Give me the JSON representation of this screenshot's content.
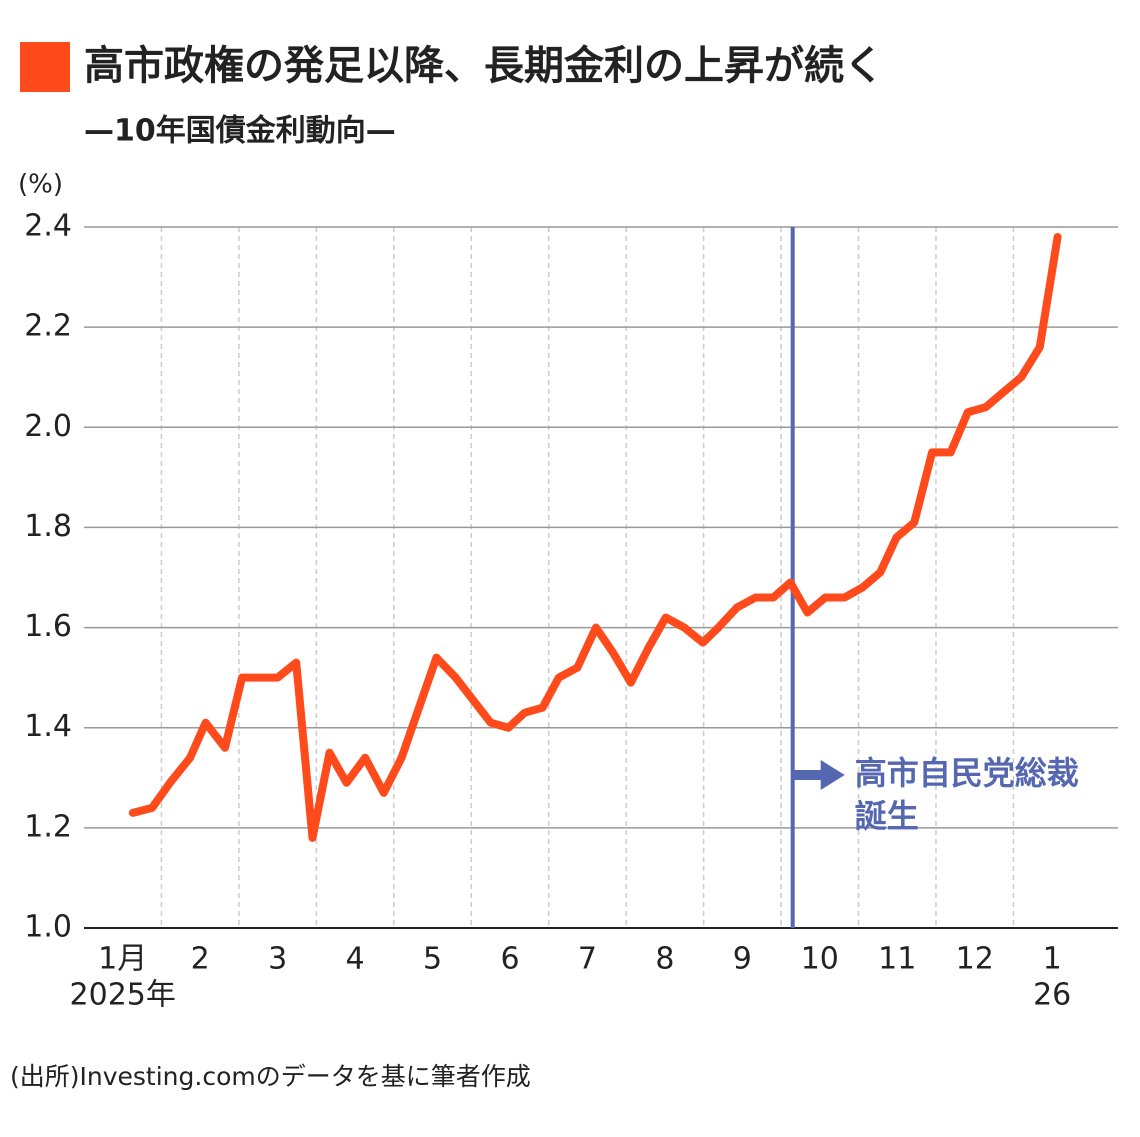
{
  "chart_data": {
    "type": "line",
    "title": "高市政権の発足以降、長期金利の上昇が続く",
    "subtitle": "—10年国債金利動向—",
    "y_unit": "(%)",
    "source": "(出所)Investing.comのデータを基に筆者作成",
    "color": "#ff4a1c",
    "x": [
      0.63,
      0.88,
      1.11,
      1.37,
      1.57,
      1.82,
      2.04,
      2.5,
      2.74,
      2.95,
      3.17,
      3.39,
      3.63,
      3.87,
      4.1,
      4.55,
      4.8,
      5.25,
      5.48,
      5.69,
      5.92,
      6.13,
      6.37,
      6.61,
      6.83,
      7.06,
      7.29,
      7.51,
      7.75,
      7.99,
      8.19,
      8.43,
      8.67,
      8.9,
      9.12,
      9.34,
      9.57,
      9.82,
      10.05,
      10.28,
      10.49,
      10.72,
      10.95,
      11.19,
      11.41,
      11.64,
      11.87,
      12.1,
      12.34,
      12.57
    ],
    "values": [
      1.23,
      1.24,
      1.29,
      1.34,
      1.41,
      1.36,
      1.5,
      1.5,
      1.53,
      1.18,
      1.35,
      1.29,
      1.34,
      1.27,
      1.34,
      1.54,
      1.5,
      1.41,
      1.4,
      1.43,
      1.44,
      1.5,
      1.52,
      1.6,
      1.55,
      1.49,
      1.56,
      1.62,
      1.6,
      1.57,
      1.6,
      1.64,
      1.66,
      1.66,
      1.69,
      1.63,
      1.66,
      1.66,
      1.68,
      1.71,
      1.78,
      1.81,
      1.95,
      1.95,
      2.03,
      2.04,
      2.07,
      2.1,
      2.16,
      2.38
    ],
    "xlim": [
      0,
      13.35
    ],
    "xticks": [
      {
        "value": 0.5,
        "label": "1月"
      },
      {
        "value": 1.5,
        "label": "2"
      },
      {
        "value": 2.5,
        "label": "3"
      },
      {
        "value": 3.5,
        "label": "4"
      },
      {
        "value": 4.5,
        "label": "5"
      },
      {
        "value": 5.5,
        "label": "6"
      },
      {
        "value": 6.5,
        "label": "7"
      },
      {
        "value": 7.5,
        "label": "8"
      },
      {
        "value": 8.5,
        "label": "9"
      },
      {
        "value": 9.5,
        "label": "10"
      },
      {
        "value": 10.5,
        "label": "11"
      },
      {
        "value": 11.5,
        "label": "12"
      },
      {
        "value": 12.5,
        "label": "1"
      }
    ],
    "x_sublabels": [
      {
        "value": 0.5,
        "label": "2025年"
      },
      {
        "value": 12.5,
        "label": "26"
      }
    ],
    "xgrid": [
      1,
      2,
      3,
      4,
      5,
      6,
      7,
      8,
      9,
      10,
      11,
      12
    ],
    "ylim": [
      1.0,
      2.4
    ],
    "yticks": [
      {
        "value": 1.0,
        "label": "1.0"
      },
      1.2,
      1.4,
      1.6,
      1.8,
      {
        "value": 2.0,
        "label": "2.0"
      },
      2.2,
      2.4
    ],
    "grid": true,
    "annotation": {
      "x": 9.15,
      "color": "#5567b0",
      "lines": [
        "高市自民党総裁",
        "誕生"
      ]
    }
  }
}
